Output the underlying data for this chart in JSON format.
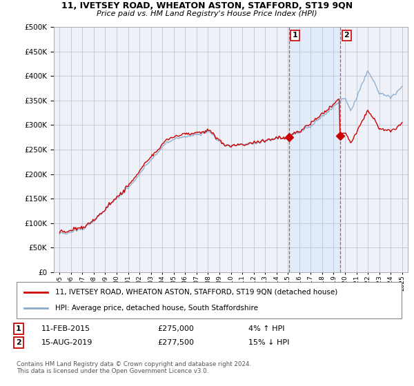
{
  "title_line1": "11, IVETSEY ROAD, WHEATON ASTON, STAFFORD, ST19 9QN",
  "title_line2": "Price paid vs. HM Land Registry's House Price Index (HPI)",
  "ylim": [
    0,
    500000
  ],
  "xlim_start": 1994.5,
  "xlim_end": 2025.5,
  "sale1_x": 2015.1,
  "sale1_y": 275000,
  "sale1_label": "1",
  "sale2_x": 2019.6,
  "sale2_y": 277500,
  "sale2_label": "2",
  "vline1_x": 2015.1,
  "vline2_x": 2019.6,
  "legend_line1": "11, IVETSEY ROAD, WHEATON ASTON, STAFFORD, ST19 9QN (detached house)",
  "legend_line2": "HPI: Average price, detached house, South Staffordshire",
  "annotation1": [
    "1",
    "11-FEB-2015",
    "£275,000",
    "4% ↑ HPI"
  ],
  "annotation2": [
    "2",
    "15-AUG-2019",
    "£277,500",
    "15% ↓ HPI"
  ],
  "footer": "Contains HM Land Registry data © Crown copyright and database right 2024.\nThis data is licensed under the Open Government Licence v3.0.",
  "red_color": "#cc0000",
  "blue_color": "#88aacc",
  "blue_fill": "#ddeeff",
  "background_color": "#eef2f8",
  "grid_color": "#bbbbcc",
  "vline_color": "#cc3333"
}
